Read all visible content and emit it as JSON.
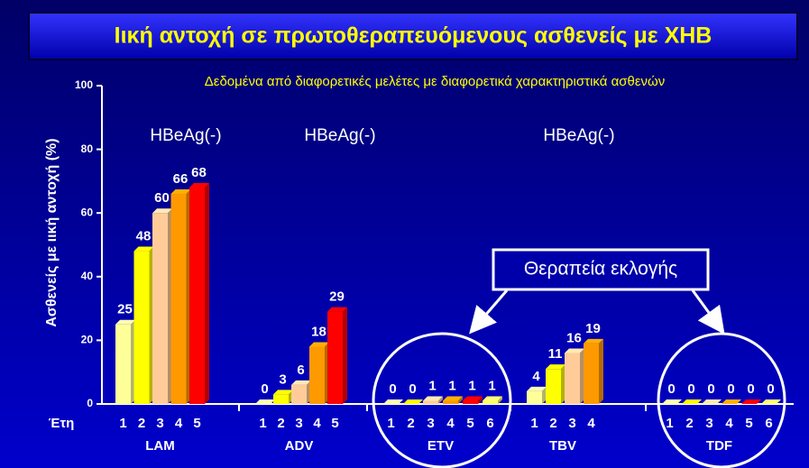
{
  "chart_data": {
    "type": "bar",
    "title": "Ιική αντοχή σε πρωτοθεραπευόμενους ασθενείς με ΧΗΒ",
    "subtitle": "Δεδομένα από διαφορετικές μελέτες με διαφορετικά χαρακτηριστικά ασθενών",
    "y_label": "Ασθενείς με ιική αντοχή (%)",
    "x_label": "Έτη",
    "ylim": [
      0,
      100
    ],
    "yticks": [
      0,
      20,
      40,
      60,
      80,
      100
    ],
    "year_colors": [
      "#ffff99",
      "#ffff00",
      "#ffcc99",
      "#ff9900",
      "#ff0000",
      "#ffff66"
    ],
    "annotations": [
      "HBeAg(-)",
      "HBeAg(-)",
      "HBeAg(-)",
      "Θεραπεία εκλογής"
    ],
    "groups": [
      {
        "name": "LAM",
        "categories": [
          "1",
          "2",
          "3",
          "4",
          "5"
        ],
        "values": [
          25,
          48,
          60,
          66,
          68
        ]
      },
      {
        "name": "ADV",
        "categories": [
          "1",
          "2",
          "3",
          "4",
          "5"
        ],
        "values": [
          0,
          3,
          6,
          18,
          29
        ]
      },
      {
        "name": "ETV",
        "categories": [
          "1",
          "2",
          "3",
          "4",
          "5",
          "6"
        ],
        "values": [
          0,
          0,
          1,
          1,
          1,
          1
        ]
      },
      {
        "name": "TBV",
        "categories": [
          "1",
          "2",
          "3",
          "4"
        ],
        "values": [
          4,
          11,
          16,
          19
        ]
      },
      {
        "name": "TDF",
        "categories": [
          "1",
          "2",
          "3",
          "4",
          "5",
          "6"
        ],
        "values": [
          0,
          0,
          0,
          0,
          0,
          0
        ]
      }
    ]
  }
}
